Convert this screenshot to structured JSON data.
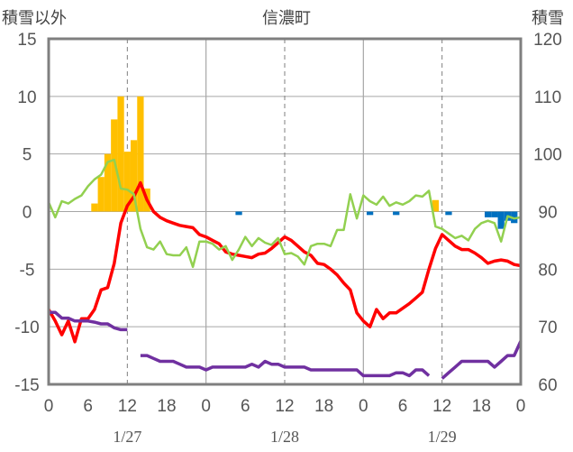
{
  "chart_data": {
    "type": "line",
    "title": "信濃町",
    "left_axis_label": "積雪以外",
    "right_axis_label": "積雪",
    "left_ylim": [
      -15,
      15
    ],
    "left_yticks": [
      15,
      10,
      5,
      0,
      -5,
      -10,
      -15
    ],
    "right_ylim": [
      60,
      120
    ],
    "right_yticks": [
      120,
      110,
      100,
      90,
      80,
      70,
      60
    ],
    "x_tick_labels": [
      "0",
      "6",
      "12",
      "18",
      "0",
      "6",
      "12",
      "18",
      "0",
      "6",
      "12",
      "18",
      "0"
    ],
    "date_labels": [
      "1/27",
      "1/28",
      "1/29"
    ],
    "grid": true,
    "colors": {
      "temperature": "#ff0000",
      "humidity_like": "#92d050",
      "snow_depth": "#7030a0",
      "snowfall": "#ffc000",
      "precip": "#0070c0"
    },
    "series": [
      {
        "key": "temperature",
        "axis": "left",
        "points": [
          [
            0,
            -8.5
          ],
          [
            1,
            -9.5
          ],
          [
            2,
            -10.7
          ],
          [
            3,
            -9.5
          ],
          [
            4,
            -11.3
          ],
          [
            5,
            -9.3
          ],
          [
            6,
            -9.3
          ],
          [
            7,
            -8.5
          ],
          [
            8,
            -6.8
          ],
          [
            9,
            -6.6
          ],
          [
            10,
            -4.5
          ],
          [
            11,
            -1
          ],
          [
            12,
            0.5
          ],
          [
            13,
            1.3
          ],
          [
            14,
            2.5
          ],
          [
            15,
            1
          ],
          [
            16,
            0
          ],
          [
            17,
            -0.5
          ],
          [
            18,
            -0.8
          ],
          [
            19,
            -1
          ],
          [
            20,
            -1.2
          ],
          [
            21,
            -1.3
          ],
          [
            22,
            -1.4
          ],
          [
            23,
            -2
          ],
          [
            24,
            -2.2
          ],
          [
            25,
            -2.5
          ],
          [
            26,
            -2.8
          ],
          [
            27,
            -3.5
          ],
          [
            28,
            -3.7
          ],
          [
            29,
            -3.8
          ],
          [
            30,
            -3.9
          ],
          [
            31,
            -4
          ],
          [
            32,
            -3.7
          ],
          [
            33,
            -3.6
          ],
          [
            34,
            -3.2
          ],
          [
            35,
            -2.7
          ],
          [
            36,
            -2.2
          ],
          [
            37,
            -2.5
          ],
          [
            38,
            -3
          ],
          [
            39,
            -3.5
          ],
          [
            40,
            -3.8
          ],
          [
            41,
            -4.5
          ],
          [
            42,
            -4.6
          ],
          [
            43,
            -5
          ],
          [
            44,
            -5.5
          ],
          [
            45,
            -6.2
          ],
          [
            46,
            -6.8
          ],
          [
            47,
            -8.8
          ],
          [
            48,
            -9.5
          ],
          [
            49,
            -10
          ],
          [
            50,
            -8.5
          ],
          [
            51,
            -9.3
          ],
          [
            52,
            -8.8
          ],
          [
            53,
            -8.8
          ],
          [
            54,
            -8.4
          ],
          [
            55,
            -8
          ],
          [
            56,
            -7.5
          ],
          [
            57,
            -7
          ],
          [
            58,
            -5
          ],
          [
            59,
            -3.2
          ],
          [
            60,
            -2
          ],
          [
            61,
            -2.5
          ],
          [
            62,
            -3
          ],
          [
            63,
            -3.3
          ],
          [
            64,
            -3.3
          ],
          [
            65,
            -3.6
          ],
          [
            66,
            -4
          ],
          [
            67,
            -4.5
          ],
          [
            68,
            -4.3
          ],
          [
            69,
            -4.2
          ],
          [
            70,
            -4.3
          ],
          [
            71,
            -4.6
          ],
          [
            72,
            -4.7
          ]
        ]
      },
      {
        "key": "humidity_like",
        "axis": "left",
        "points": [
          [
            0,
            0.8
          ],
          [
            1,
            -0.5
          ],
          [
            2,
            0.9
          ],
          [
            3,
            0.7
          ],
          [
            4,
            1.1
          ],
          [
            5,
            1.4
          ],
          [
            6,
            2.2
          ],
          [
            7,
            2.8
          ],
          [
            8,
            3.2
          ],
          [
            9,
            4.3
          ],
          [
            10,
            4.5
          ],
          [
            11,
            2
          ],
          [
            12,
            1.9
          ],
          [
            13,
            1.5
          ],
          [
            14,
            -1.5
          ],
          [
            15,
            -3.1
          ],
          [
            16,
            -3.3
          ],
          [
            17,
            -2.6
          ],
          [
            18,
            -3.7
          ],
          [
            19,
            -3.8
          ],
          [
            20,
            -3.8
          ],
          [
            21,
            -3.1
          ],
          [
            22,
            -4.8
          ],
          [
            23,
            -2.6
          ],
          [
            24,
            -2.6
          ],
          [
            25,
            -2.8
          ],
          [
            26,
            -3.3
          ],
          [
            27,
            -3
          ],
          [
            28,
            -4.2
          ],
          [
            29,
            -3.3
          ],
          [
            30,
            -2.2
          ],
          [
            31,
            -3
          ],
          [
            32,
            -2.3
          ],
          [
            33,
            -2.7
          ],
          [
            34,
            -2.9
          ],
          [
            35,
            -2.3
          ],
          [
            36,
            -3.7
          ],
          [
            37,
            -3.6
          ],
          [
            38,
            -3.9
          ],
          [
            39,
            -4.6
          ],
          [
            40,
            -3
          ],
          [
            41,
            -2.8
          ],
          [
            42,
            -2.8
          ],
          [
            43,
            -3
          ],
          [
            44,
            -1.6
          ],
          [
            45,
            -1.6
          ],
          [
            46,
            1.5
          ],
          [
            47,
            -0.6
          ],
          [
            48,
            1.4
          ],
          [
            49,
            0.9
          ],
          [
            50,
            0.6
          ],
          [
            51,
            1.3
          ],
          [
            52,
            0.5
          ],
          [
            53,
            0.8
          ],
          [
            54,
            0.6
          ],
          [
            55,
            0.9
          ],
          [
            56,
            1.4
          ],
          [
            57,
            1.3
          ],
          [
            58,
            1.8
          ],
          [
            59,
            -1.3
          ],
          [
            60,
            -1.5
          ],
          [
            61,
            -1.9
          ],
          [
            62,
            -2.3
          ],
          [
            63,
            -2.1
          ],
          [
            64,
            -2.5
          ],
          [
            65,
            -1.5
          ],
          [
            66,
            -1
          ],
          [
            67,
            -0.8
          ],
          [
            68,
            -1
          ],
          [
            69,
            -2.6
          ],
          [
            70,
            -0.4
          ],
          [
            71,
            -0.6
          ],
          [
            72,
            -0.5
          ]
        ]
      },
      {
        "key": "snow_depth",
        "axis": "right",
        "segments": [
          [
            [
              0,
              72.5
            ],
            [
              1,
              72.5
            ],
            [
              2,
              71.5
            ],
            [
              3,
              71.5
            ],
            [
              4,
              71
            ],
            [
              5,
              71
            ],
            [
              6,
              71
            ],
            [
              7,
              70.8
            ],
            [
              8,
              70.5
            ],
            [
              9,
              70.5
            ],
            [
              10,
              69.8
            ],
            [
              11,
              69.5
            ],
            [
              12,
              69.5
            ]
          ],
          [
            [
              14,
              65
            ],
            [
              15,
              65
            ],
            [
              16,
              64.5
            ],
            [
              17,
              64
            ],
            [
              18,
              64
            ],
            [
              19,
              64
            ],
            [
              20,
              63.5
            ],
            [
              21,
              63
            ],
            [
              22,
              63
            ],
            [
              23,
              63
            ],
            [
              24,
              62.5
            ],
            [
              25,
              63
            ],
            [
              26,
              63
            ],
            [
              27,
              63
            ],
            [
              28,
              63
            ],
            [
              29,
              63
            ],
            [
              30,
              63
            ],
            [
              31,
              63.5
            ],
            [
              32,
              63
            ],
            [
              33,
              64
            ],
            [
              34,
              63.5
            ],
            [
              35,
              63.5
            ],
            [
              36,
              63
            ],
            [
              37,
              63
            ],
            [
              38,
              63
            ],
            [
              39,
              63
            ],
            [
              40,
              62.5
            ],
            [
              41,
              62.5
            ],
            [
              42,
              62.5
            ],
            [
              43,
              62.5
            ],
            [
              44,
              62.5
            ],
            [
              45,
              62.5
            ],
            [
              46,
              62.5
            ],
            [
              47,
              62.5
            ],
            [
              48,
              61.5
            ],
            [
              49,
              61.5
            ],
            [
              50,
              61.5
            ],
            [
              51,
              61.5
            ],
            [
              52,
              61.5
            ],
            [
              53,
              62
            ],
            [
              54,
              62
            ],
            [
              55,
              61.5
            ],
            [
              56,
              62.5
            ],
            [
              57,
              62.5
            ],
            [
              58,
              61.5
            ]
          ],
          [
            [
              60,
              61
            ],
            [
              61,
              62
            ],
            [
              62,
              63
            ],
            [
              63,
              64
            ],
            [
              64,
              64
            ],
            [
              65,
              64
            ],
            [
              66,
              64
            ],
            [
              67,
              64
            ],
            [
              68,
              63
            ],
            [
              69,
              64
            ],
            [
              70,
              65
            ],
            [
              71,
              65
            ],
            [
              72,
              67.5
            ]
          ]
        ]
      }
    ],
    "bars_snowfall": [
      [
        7,
        0.7
      ],
      [
        8,
        3
      ],
      [
        9,
        5
      ],
      [
        10,
        8
      ],
      [
        11,
        10
      ],
      [
        12,
        5.2
      ],
      [
        13,
        6.2
      ],
      [
        14,
        10
      ],
      [
        15,
        2
      ],
      [
        59,
        1
      ]
    ],
    "bars_precip": [
      [
        29,
        -0.3
      ],
      [
        49,
        -0.3
      ],
      [
        53,
        -0.3
      ],
      [
        61,
        -0.3
      ],
      [
        67,
        -0.5
      ],
      [
        68,
        -0.5
      ],
      [
        69,
        -1.5
      ],
      [
        70,
        -0.8
      ],
      [
        71,
        -1
      ]
    ]
  }
}
